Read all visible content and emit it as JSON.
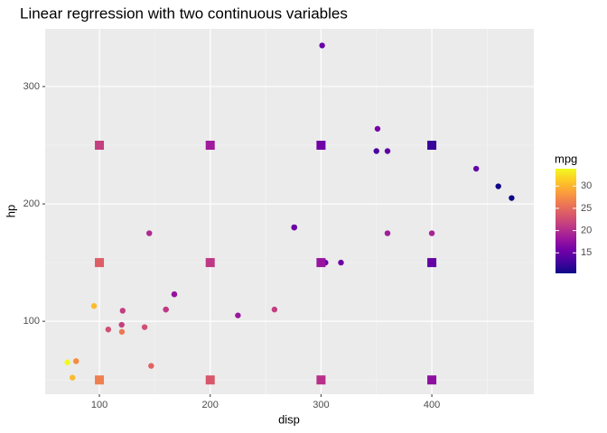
{
  "chart_data": {
    "type": "scatter",
    "title": "Linear regrression with two continuous variables",
    "x_label": "disp",
    "y_label": "hp",
    "xlim": [
      51.05,
      492.05
    ],
    "xticks": [
      100,
      200,
      300,
      400
    ],
    "ylim": [
      37.85,
      349.15
    ],
    "yticks": [
      100,
      200,
      300
    ],
    "grid": true,
    "points": {
      "x": [
        160,
        160,
        108,
        258,
        360,
        225,
        360,
        146.7,
        140.8,
        167.6,
        167.6,
        275.8,
        275.8,
        275.8,
        472,
        460,
        440,
        78.7,
        75.7,
        71.1,
        120.1,
        318,
        304,
        350,
        400,
        79,
        120.3,
        95.1,
        351,
        145,
        301,
        121
      ],
      "y": [
        110,
        110,
        93,
        110,
        175,
        105,
        245,
        62,
        95,
        123,
        123,
        180,
        180,
        180,
        205,
        215,
        230,
        66,
        52,
        65,
        97,
        150,
        150,
        245,
        175,
        66,
        91,
        113,
        264,
        175,
        335,
        109
      ],
      "color_values": [
        21,
        21,
        22.8,
        21.4,
        18.7,
        18.1,
        14.3,
        24.4,
        22.8,
        19.2,
        17.8,
        16.4,
        17.3,
        15.2,
        10.4,
        10.4,
        14.7,
        32.4,
        30.4,
        33.9,
        21.5,
        15.5,
        15.2,
        13.3,
        19.2,
        27.3,
        26,
        30.4,
        15.8,
        19.7,
        15,
        21.4
      ]
    },
    "predictions": {
      "x": [
        100,
        200,
        300,
        400,
        100,
        200,
        300,
        400,
        100,
        200,
        300,
        400
      ],
      "y": [
        50,
        50,
        50,
        50,
        150,
        150,
        150,
        150,
        250,
        250,
        250,
        250
      ],
      "color_values": [
        26.46,
        23.42,
        20.39,
        17.35,
        23.98,
        20.94,
        17.91,
        14.87,
        21.49,
        18.45,
        15.42,
        12.39
      ]
    },
    "color_scale": {
      "name": "mpg",
      "limits": [
        10.4,
        33.9
      ],
      "ticks": [
        15,
        20,
        25,
        30
      ],
      "colors": [
        "#0d0887",
        "#46039f",
        "#7201a8",
        "#9c179e",
        "#bd3786",
        "#d8576b",
        "#ed7953",
        "#fb9f3a",
        "#fdca26",
        "#f0f921"
      ]
    }
  }
}
